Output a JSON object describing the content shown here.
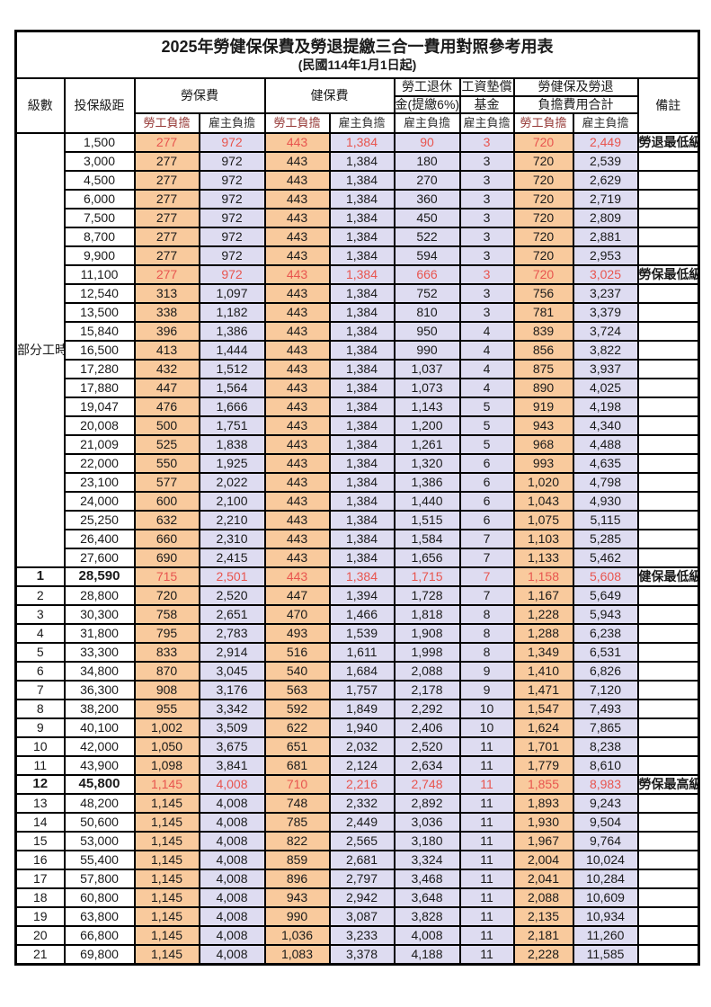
{
  "title": "2025年勞健保保費及勞退提繳三合一費用對照參考用表",
  "subtitle": "(民國114年1月1日起)",
  "header": {
    "level": "級數",
    "bracket": "投保級距",
    "labor_insurance": "勞保費",
    "health_insurance": "健保費",
    "pension_line1": "勞工退休",
    "pension_line2": "金(提繳6%)",
    "wage_fund_line1": "工資墊償",
    "wage_fund_line2": "基金",
    "total_line1": "勞健保及勞退",
    "total_line2": "負擔費用合計",
    "remark": "備註",
    "employee_share": "勞工負擔",
    "employer_share": "雇主負擔"
  },
  "part_time_label": "部分工時",
  "part_time_rowspan": 23,
  "colors": {
    "employee_bg": "#F9CA9D",
    "employer_bg": "#DEDCF1",
    "highlight_red": "#E8554F",
    "border": "#000000"
  },
  "rows": [
    {
      "level": "",
      "bracket": "1,500",
      "values": [
        "277",
        "972",
        "443",
        "1,384",
        "90",
        "3",
        "720",
        "2,449"
      ],
      "note": "勞退最低級距",
      "red": true,
      "bold": false
    },
    {
      "level": "",
      "bracket": "3,000",
      "values": [
        "277",
        "972",
        "443",
        "1,384",
        "180",
        "3",
        "720",
        "2,539"
      ],
      "note": "",
      "red": false,
      "bold": false
    },
    {
      "level": "",
      "bracket": "4,500",
      "values": [
        "277",
        "972",
        "443",
        "1,384",
        "270",
        "3",
        "720",
        "2,629"
      ],
      "note": "",
      "red": false,
      "bold": false
    },
    {
      "level": "",
      "bracket": "6,000",
      "values": [
        "277",
        "972",
        "443",
        "1,384",
        "360",
        "3",
        "720",
        "2,719"
      ],
      "note": "",
      "red": false,
      "bold": false
    },
    {
      "level": "",
      "bracket": "7,500",
      "values": [
        "277",
        "972",
        "443",
        "1,384",
        "450",
        "3",
        "720",
        "2,809"
      ],
      "note": "",
      "red": false,
      "bold": false
    },
    {
      "level": "",
      "bracket": "8,700",
      "values": [
        "277",
        "972",
        "443",
        "1,384",
        "522",
        "3",
        "720",
        "2,881"
      ],
      "note": "",
      "red": false,
      "bold": false
    },
    {
      "level": "",
      "bracket": "9,900",
      "values": [
        "277",
        "972",
        "443",
        "1,384",
        "594",
        "3",
        "720",
        "2,953"
      ],
      "note": "",
      "red": false,
      "bold": false
    },
    {
      "level": "",
      "bracket": "11,100",
      "values": [
        "277",
        "972",
        "443",
        "1,384",
        "666",
        "3",
        "720",
        "3,025"
      ],
      "note": "勞保最低級距",
      "red": true,
      "bold": false
    },
    {
      "level": "",
      "bracket": "12,540",
      "values": [
        "313",
        "1,097",
        "443",
        "1,384",
        "752",
        "3",
        "756",
        "3,237"
      ],
      "note": "",
      "red": false,
      "bold": false
    },
    {
      "level": "",
      "bracket": "13,500",
      "values": [
        "338",
        "1,182",
        "443",
        "1,384",
        "810",
        "3",
        "781",
        "3,379"
      ],
      "note": "",
      "red": false,
      "bold": false
    },
    {
      "level": "",
      "bracket": "15,840",
      "values": [
        "396",
        "1,386",
        "443",
        "1,384",
        "950",
        "4",
        "839",
        "3,724"
      ],
      "note": "",
      "red": false,
      "bold": false
    },
    {
      "level": "",
      "bracket": "16,500",
      "values": [
        "413",
        "1,444",
        "443",
        "1,384",
        "990",
        "4",
        "856",
        "3,822"
      ],
      "note": "",
      "red": false,
      "bold": false
    },
    {
      "level": "",
      "bracket": "17,280",
      "values": [
        "432",
        "1,512",
        "443",
        "1,384",
        "1,037",
        "4",
        "875",
        "3,937"
      ],
      "note": "",
      "red": false,
      "bold": false
    },
    {
      "level": "",
      "bracket": "17,880",
      "values": [
        "447",
        "1,564",
        "443",
        "1,384",
        "1,073",
        "4",
        "890",
        "4,025"
      ],
      "note": "",
      "red": false,
      "bold": false
    },
    {
      "level": "",
      "bracket": "19,047",
      "values": [
        "476",
        "1,666",
        "443",
        "1,384",
        "1,143",
        "5",
        "919",
        "4,198"
      ],
      "note": "",
      "red": false,
      "bold": false
    },
    {
      "level": "",
      "bracket": "20,008",
      "values": [
        "500",
        "1,751",
        "443",
        "1,384",
        "1,200",
        "5",
        "943",
        "4,340"
      ],
      "note": "",
      "red": false,
      "bold": false
    },
    {
      "level": "",
      "bracket": "21,009",
      "values": [
        "525",
        "1,838",
        "443",
        "1,384",
        "1,261",
        "5",
        "968",
        "4,488"
      ],
      "note": "",
      "red": false,
      "bold": false
    },
    {
      "level": "",
      "bracket": "22,000",
      "values": [
        "550",
        "1,925",
        "443",
        "1,384",
        "1,320",
        "6",
        "993",
        "4,635"
      ],
      "note": "",
      "red": false,
      "bold": false
    },
    {
      "level": "",
      "bracket": "23,100",
      "values": [
        "577",
        "2,022",
        "443",
        "1,384",
        "1,386",
        "6",
        "1,020",
        "4,798"
      ],
      "note": "",
      "red": false,
      "bold": false
    },
    {
      "level": "",
      "bracket": "24,000",
      "values": [
        "600",
        "2,100",
        "443",
        "1,384",
        "1,440",
        "6",
        "1,043",
        "4,930"
      ],
      "note": "",
      "red": false,
      "bold": false
    },
    {
      "level": "",
      "bracket": "25,250",
      "values": [
        "632",
        "2,210",
        "443",
        "1,384",
        "1,515",
        "6",
        "1,075",
        "5,115"
      ],
      "note": "",
      "red": false,
      "bold": false
    },
    {
      "level": "",
      "bracket": "26,400",
      "values": [
        "660",
        "2,310",
        "443",
        "1,384",
        "1,584",
        "7",
        "1,103",
        "5,285"
      ],
      "note": "",
      "red": false,
      "bold": false
    },
    {
      "level": "",
      "bracket": "27,600",
      "values": [
        "690",
        "2,415",
        "443",
        "1,384",
        "1,656",
        "7",
        "1,133",
        "5,462"
      ],
      "note": "",
      "red": false,
      "bold": false
    },
    {
      "level": "1",
      "bracket": "28,590",
      "values": [
        "715",
        "2,501",
        "443",
        "1,384",
        "1,715",
        "7",
        "1,158",
        "5,608"
      ],
      "note": "健保最低級距",
      "red": true,
      "bold": true
    },
    {
      "level": "2",
      "bracket": "28,800",
      "values": [
        "720",
        "2,520",
        "447",
        "1,394",
        "1,728",
        "7",
        "1,167",
        "5,649"
      ],
      "note": "",
      "red": false,
      "bold": false
    },
    {
      "level": "3",
      "bracket": "30,300",
      "values": [
        "758",
        "2,651",
        "470",
        "1,466",
        "1,818",
        "8",
        "1,228",
        "5,943"
      ],
      "note": "",
      "red": false,
      "bold": false
    },
    {
      "level": "4",
      "bracket": "31,800",
      "values": [
        "795",
        "2,783",
        "493",
        "1,539",
        "1,908",
        "8",
        "1,288",
        "6,238"
      ],
      "note": "",
      "red": false,
      "bold": false
    },
    {
      "level": "5",
      "bracket": "33,300",
      "values": [
        "833",
        "2,914",
        "516",
        "1,611",
        "1,998",
        "8",
        "1,349",
        "6,531"
      ],
      "note": "",
      "red": false,
      "bold": false
    },
    {
      "level": "6",
      "bracket": "34,800",
      "values": [
        "870",
        "3,045",
        "540",
        "1,684",
        "2,088",
        "9",
        "1,410",
        "6,826"
      ],
      "note": "",
      "red": false,
      "bold": false
    },
    {
      "level": "7",
      "bracket": "36,300",
      "values": [
        "908",
        "3,176",
        "563",
        "1,757",
        "2,178",
        "9",
        "1,471",
        "7,120"
      ],
      "note": "",
      "red": false,
      "bold": false
    },
    {
      "level": "8",
      "bracket": "38,200",
      "values": [
        "955",
        "3,342",
        "592",
        "1,849",
        "2,292",
        "10",
        "1,547",
        "7,493"
      ],
      "note": "",
      "red": false,
      "bold": false
    },
    {
      "level": "9",
      "bracket": "40,100",
      "values": [
        "1,002",
        "3,509",
        "622",
        "1,940",
        "2,406",
        "10",
        "1,624",
        "7,865"
      ],
      "note": "",
      "red": false,
      "bold": false
    },
    {
      "level": "10",
      "bracket": "42,000",
      "values": [
        "1,050",
        "3,675",
        "651",
        "2,032",
        "2,520",
        "11",
        "1,701",
        "8,238"
      ],
      "note": "",
      "red": false,
      "bold": false
    },
    {
      "level": "11",
      "bracket": "43,900",
      "values": [
        "1,098",
        "3,841",
        "681",
        "2,124",
        "2,634",
        "11",
        "1,779",
        "8,610"
      ],
      "note": "",
      "red": false,
      "bold": false
    },
    {
      "level": "12",
      "bracket": "45,800",
      "values": [
        "1,145",
        "4,008",
        "710",
        "2,216",
        "2,748",
        "11",
        "1,855",
        "8,983"
      ],
      "note": "勞保最高級距",
      "red": true,
      "bold": true
    },
    {
      "level": "13",
      "bracket": "48,200",
      "values": [
        "1,145",
        "4,008",
        "748",
        "2,332",
        "2,892",
        "11",
        "1,893",
        "9,243"
      ],
      "note": "",
      "red": false,
      "bold": false
    },
    {
      "level": "14",
      "bracket": "50,600",
      "values": [
        "1,145",
        "4,008",
        "785",
        "2,449",
        "3,036",
        "11",
        "1,930",
        "9,504"
      ],
      "note": "",
      "red": false,
      "bold": false
    },
    {
      "level": "15",
      "bracket": "53,000",
      "values": [
        "1,145",
        "4,008",
        "822",
        "2,565",
        "3,180",
        "11",
        "1,967",
        "9,764"
      ],
      "note": "",
      "red": false,
      "bold": false
    },
    {
      "level": "16",
      "bracket": "55,400",
      "values": [
        "1,145",
        "4,008",
        "859",
        "2,681",
        "3,324",
        "11",
        "2,004",
        "10,024"
      ],
      "note": "",
      "red": false,
      "bold": false
    },
    {
      "level": "17",
      "bracket": "57,800",
      "values": [
        "1,145",
        "4,008",
        "896",
        "2,797",
        "3,468",
        "11",
        "2,041",
        "10,284"
      ],
      "note": "",
      "red": false,
      "bold": false
    },
    {
      "level": "18",
      "bracket": "60,800",
      "values": [
        "1,145",
        "4,008",
        "943",
        "2,942",
        "3,648",
        "11",
        "2,088",
        "10,609"
      ],
      "note": "",
      "red": false,
      "bold": false
    },
    {
      "level": "19",
      "bracket": "63,800",
      "values": [
        "1,145",
        "4,008",
        "990",
        "3,087",
        "3,828",
        "11",
        "2,135",
        "10,934"
      ],
      "note": "",
      "red": false,
      "bold": false
    },
    {
      "level": "20",
      "bracket": "66,800",
      "values": [
        "1,145",
        "4,008",
        "1,036",
        "3,233",
        "4,008",
        "11",
        "2,181",
        "11,260"
      ],
      "note": "",
      "red": false,
      "bold": false
    },
    {
      "level": "21",
      "bracket": "69,800",
      "values": [
        "1,145",
        "4,008",
        "1,083",
        "3,378",
        "4,188",
        "11",
        "2,228",
        "11,585"
      ],
      "note": "",
      "red": false,
      "bold": false
    }
  ]
}
